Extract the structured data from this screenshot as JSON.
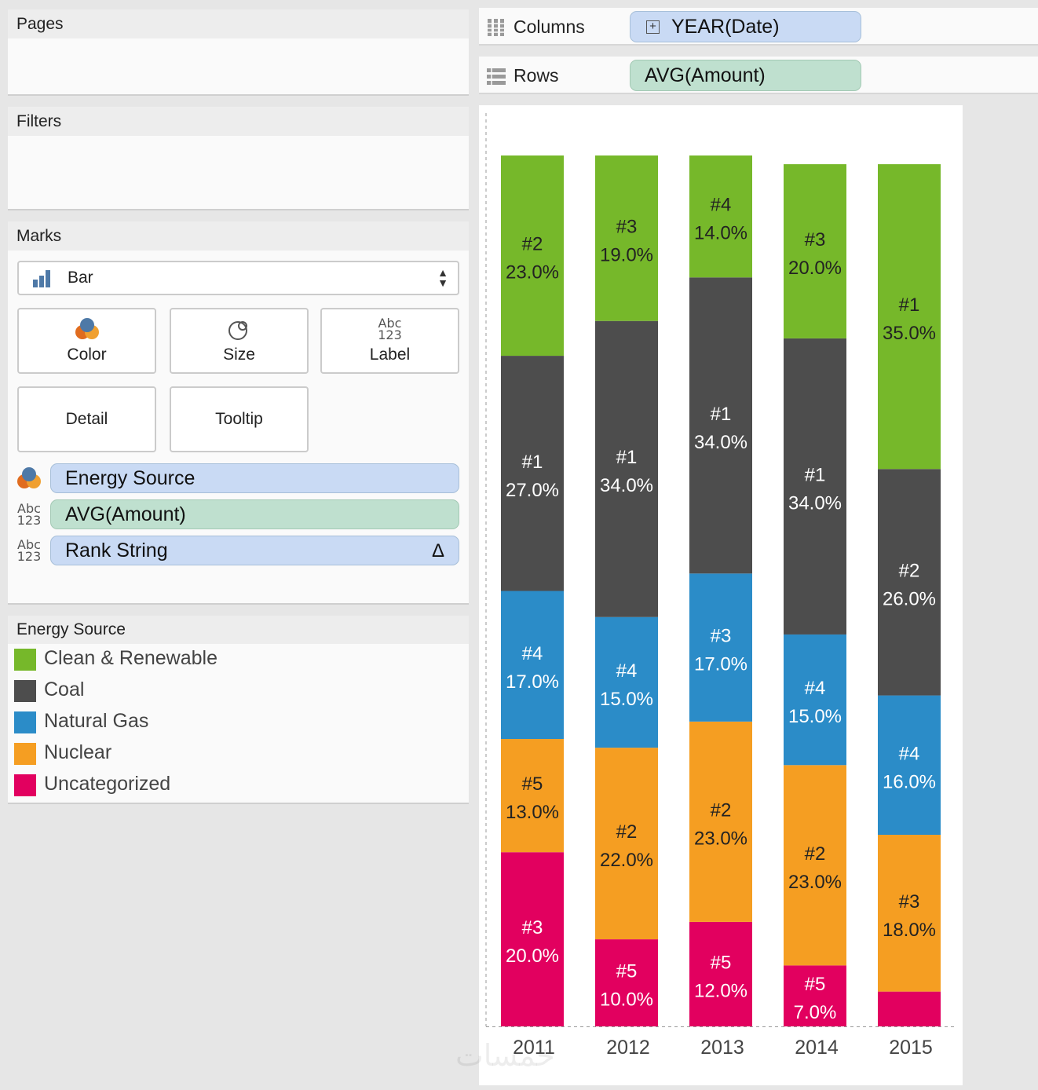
{
  "panels": {
    "pages_title": "Pages",
    "filters_title": "Filters",
    "marks_title": "Marks"
  },
  "marks": {
    "mark_type": "Bar",
    "buttons": {
      "color": "Color",
      "size": "Size",
      "label": "Label",
      "detail": "Detail",
      "tooltip": "Tooltip"
    },
    "label_icon_top": "Abc",
    "label_icon_bottom": "123",
    "fields": [
      {
        "name": "Energy Source",
        "kind": "dimension",
        "role": "color"
      },
      {
        "name": "AVG(Amount)",
        "kind": "measure",
        "role": "label"
      },
      {
        "name": "Rank String",
        "kind": "dimension",
        "role": "label",
        "badge": "Δ"
      }
    ]
  },
  "legend": {
    "title": "Energy Source",
    "items": [
      {
        "label": "Clean & Renewable",
        "color": "#76b82a"
      },
      {
        "label": "Coal",
        "color": "#4d4d4d"
      },
      {
        "label": "Natural Gas",
        "color": "#2b8cc8"
      },
      {
        "label": "Nuclear",
        "color": "#f59e22"
      },
      {
        "label": "Uncategorized",
        "color": "#e2005f"
      }
    ]
  },
  "shelves": {
    "columns_label": "Columns",
    "columns_pill": "YEAR(Date)",
    "rows_label": "Rows",
    "rows_pill": "AVG(Amount)"
  },
  "chart_data": {
    "type": "bar",
    "stacked": true,
    "categories": [
      "2011",
      "2012",
      "2013",
      "2014",
      "2015"
    ],
    "series": [
      {
        "name": "Uncategorized",
        "color": "#e2005f",
        "values": [
          20,
          10,
          12,
          7,
          4
        ],
        "labels": [
          "#3\n20.0%",
          "#5\n10.0%",
          "#5\n12.0%",
          "#5\n7.0%",
          ""
        ]
      },
      {
        "name": "Nuclear",
        "color": "#f59e22",
        "values": [
          13,
          22,
          23,
          23,
          18
        ],
        "labels": [
          "#5\n13.0%",
          "#2\n22.0%",
          "#2\n23.0%",
          "#2\n23.0%",
          "#3\n18.0%"
        ]
      },
      {
        "name": "Natural Gas",
        "color": "#2b8cc8",
        "values": [
          17,
          15,
          17,
          15,
          16
        ],
        "labels": [
          "#4\n17.0%",
          "#4\n15.0%",
          "#3\n17.0%",
          "#4\n15.0%",
          "#4\n16.0%"
        ]
      },
      {
        "name": "Coal",
        "color": "#4d4d4d",
        "values": [
          27,
          34,
          34,
          34,
          26
        ],
        "labels": [
          "#1\n27.0%",
          "#1\n34.0%",
          "#1\n34.0%",
          "#1\n34.0%",
          "#2\n26.0%"
        ]
      },
      {
        "name": "Clean & Renewable",
        "color": "#76b82a",
        "values": [
          23,
          19,
          14,
          20,
          35
        ],
        "labels": [
          "#2\n23.0%",
          "#3\n19.0%",
          "#4\n14.0%",
          "#3\n20.0%",
          "#1\n35.0%"
        ]
      }
    ],
    "xlabel": "",
    "ylabel": "",
    "grid": false
  },
  "watermark": "خمسات"
}
